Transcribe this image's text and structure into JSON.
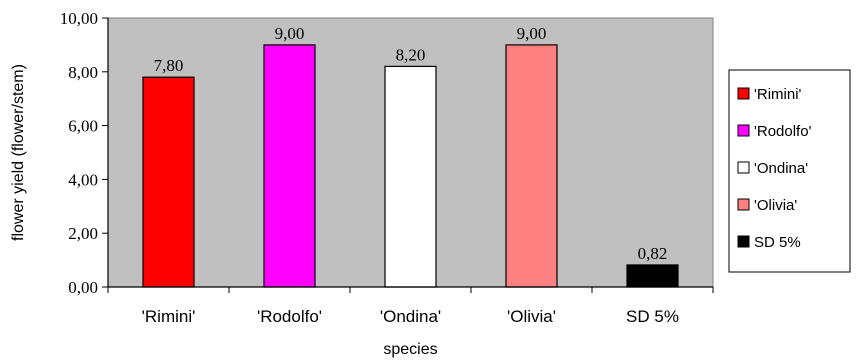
{
  "chart_data": {
    "type": "bar",
    "title": "",
    "xlabel": "species",
    "ylabel": "flower yield (flower/stem)",
    "categories": [
      "'Rimini'",
      "'Rodolfo'",
      "'Ondina'",
      "'Olivia'",
      "SD 5%"
    ],
    "values": [
      7.8,
      9.0,
      8.2,
      9.0,
      0.82
    ],
    "value_labels": [
      "7,80",
      "9,00",
      "8,20",
      "9,00",
      "0,82"
    ],
    "colors": [
      "#ff0000",
      "#ff00ff",
      "#ffffff",
      "#ff8080",
      "#000000"
    ],
    "ylim": [
      0,
      10
    ],
    "yticks": [
      0,
      2,
      4,
      6,
      8,
      10
    ],
    "ytick_labels": [
      "0,00",
      "2,00",
      "4,00",
      "6,00",
      "8,00",
      "10,00"
    ],
    "plot_background": "#c0c0c0",
    "grid": false,
    "legend": {
      "placement": "right",
      "entries": [
        "'Rimini'",
        "'Rodolfo'",
        "'Ondina'",
        "'Olivia'",
        "SD 5%"
      ]
    }
  }
}
